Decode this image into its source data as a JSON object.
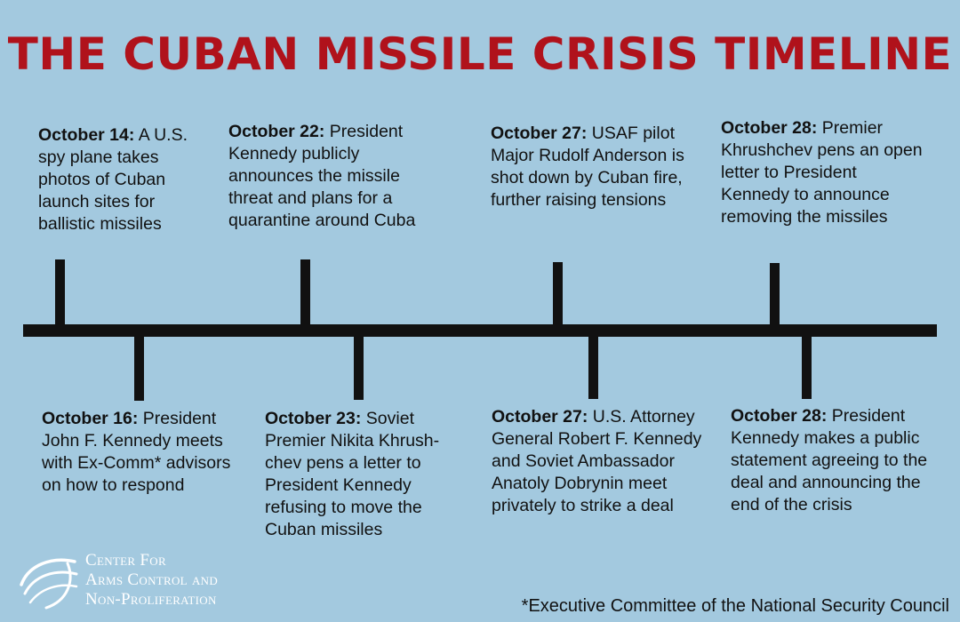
{
  "title": "THE CUBAN MISSILE CRISIS TIMELINE",
  "events_above": [
    {
      "date": "October 14:",
      "text": " A U.S. spy plane takes photos of Cuban launch sites for ballistic missiles"
    },
    {
      "date": "October 22:",
      "text": " President Kennedy publicly announces the missile threat and plans for a quarantine around Cuba"
    },
    {
      "date": "October 27:",
      "text": " USAF pilot Major Rudolf Anderson is shot down by Cuban fire, further raising tensions"
    },
    {
      "date": "October 28:",
      "text": " Premier Khrushchev pens an open letter to President Kennedy to announce removing the missiles"
    }
  ],
  "events_below": [
    {
      "date": "October 16:",
      "text": " President John F. Kennedy meets with Ex-Comm* advisors on how to respond"
    },
    {
      "date": "October 23:",
      "text": " Soviet Premier Nikita Khrush-chev pens a letter to President Kennedy refusing to move the Cuban missiles"
    },
    {
      "date": "October 27:",
      "text": " U.S. Attorney General Robert F. Kennedy and Soviet Ambassador Anatoly Dobrynin meet privately to strike a deal"
    },
    {
      "date": "October 28:",
      "text": " President Kennedy makes a public statement agreeing to the deal and announcing the end of the crisis"
    }
  ],
  "logo": {
    "line1": "Center For",
    "line2": "Arms Control and",
    "line3": "Non-Proliferation"
  },
  "footnote": "*Executive Committee of the National Security Council"
}
